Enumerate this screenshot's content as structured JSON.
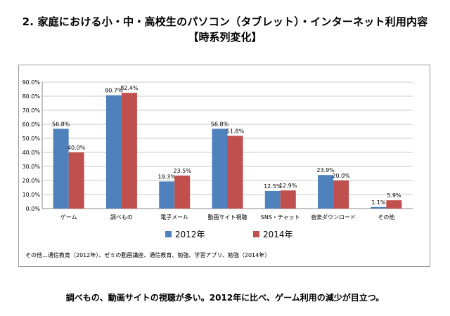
{
  "page": {
    "title_line1": "2. 家庭における小・中・高校生のパソコン（タブレット）・インターネット利用内容",
    "title_line2": "【時系列変化】",
    "note": "その他…通信教育（2012年）、ゼミの動画講座、通信教育、勉強、学習アプリ、勉強（2014年）",
    "caption": "調べもの、動画サイトの視聴が多い。2012年に比べ、ゲーム利用の減少が目立つ。"
  },
  "colors": {
    "s2012": "#4f81bd",
    "s2014": "#c0504d",
    "grid": "#c8c8c8",
    "axis": "#888888"
  },
  "chart_data": {
    "type": "bar",
    "categories": [
      "ゲーム",
      "調べもの",
      "電子メール",
      "動画サイト視聴",
      "SNS・チャット",
      "音楽ダウンロード",
      "その他"
    ],
    "series": [
      {
        "name": "2012年",
        "values": [
          56.8,
          80.7,
          19.3,
          56.8,
          12.5,
          23.9,
          1.1
        ],
        "labels": [
          "56.8%",
          "80.7%",
          "19.3%",
          "56.8%",
          "12.5%",
          "23.9%",
          "1.1%"
        ]
      },
      {
        "name": "2014年",
        "values": [
          40.0,
          82.4,
          23.5,
          51.8,
          12.9,
          20.0,
          5.9
        ],
        "labels": [
          "40.0%",
          "82.4%",
          "23.5%",
          "51.8%",
          "12.9%",
          "20.0%",
          "5.9%"
        ]
      }
    ],
    "ylim": [
      0,
      90
    ],
    "yticks": [
      0,
      10,
      20,
      30,
      40,
      50,
      60,
      70,
      80,
      90
    ],
    "ytick_labels": [
      "0.0%",
      "10.0%",
      "20.0%",
      "30.0%",
      "40.0%",
      "50.0%",
      "60.0%",
      "70.0%",
      "80.0%",
      "90.0%"
    ],
    "legend_position": "bottom",
    "grid": true
  }
}
